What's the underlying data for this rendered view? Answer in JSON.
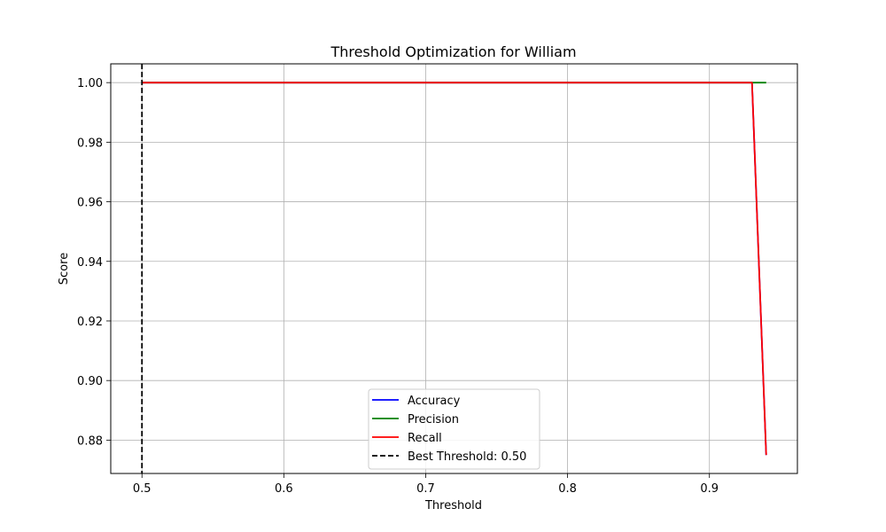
{
  "chart_data": {
    "type": "line",
    "title": "Threshold Optimization for William",
    "xlabel": "Threshold",
    "ylabel": "Score",
    "xlim": [
      0.478,
      0.962
    ],
    "ylim": [
      0.8688,
      1.0063
    ],
    "xticks": [
      0.5,
      0.6,
      0.7,
      0.8,
      0.9
    ],
    "xtick_labels": [
      "0.5",
      "0.6",
      "0.7",
      "0.8",
      "0.9"
    ],
    "yticks": [
      0.88,
      0.9,
      0.92,
      0.94,
      0.96,
      0.98,
      1.0
    ],
    "ytick_labels": [
      "0.88",
      "0.90",
      "0.92",
      "0.94",
      "0.96",
      "0.98",
      "1.00"
    ],
    "grid": true,
    "legend_position": "lower-center",
    "series": [
      {
        "name": "Accuracy",
        "color": "#0000ff",
        "x": [
          0.5,
          0.93,
          0.94
        ],
        "y": [
          1.0,
          1.0,
          0.875
        ]
      },
      {
        "name": "Precision",
        "color": "#008000",
        "x": [
          0.5,
          0.93,
          0.94
        ],
        "y": [
          1.0,
          1.0,
          1.0
        ]
      },
      {
        "name": "Recall",
        "color": "#ff0000",
        "x": [
          0.5,
          0.93,
          0.94
        ],
        "y": [
          1.0,
          1.0,
          0.875
        ]
      }
    ],
    "vline": {
      "name": "Best Threshold: 0.50",
      "x": 0.5,
      "color": "#000000",
      "style": "dashed"
    }
  }
}
